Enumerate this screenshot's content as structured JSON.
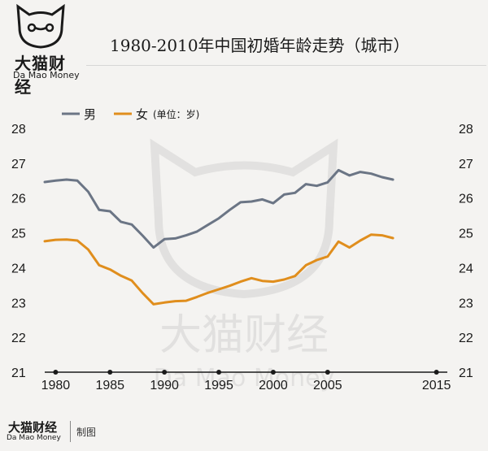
{
  "brand": {
    "name_cn": "大猫财经",
    "name_en": "Da Mao Money"
  },
  "title": "1980-2010年中国初婚年龄走势（城市）",
  "footer": {
    "brand_cn": "大猫财经",
    "brand_en": "Da Mao Money",
    "credit": "制图"
  },
  "watermark": {
    "name_cn": "大猫财经",
    "name_en": "Da Mao Money"
  },
  "colors": {
    "male": "#6b7585",
    "female": "#e08e1d",
    "axis": "#1a1a1a"
  },
  "chart_data": {
    "type": "line",
    "title": "1980-2010年中国初婚年龄走势（城市）",
    "unit": "(单位：岁)",
    "xlabel": "",
    "ylabel": "",
    "xlim": [
      1979,
      2016
    ],
    "ylim": [
      21,
      28
    ],
    "x_ticks": [
      "1980",
      "1985",
      "1990",
      "1995",
      "2000",
      "2005",
      "2015"
    ],
    "x_tick_values": [
      1980,
      1985,
      1990,
      1995,
      2000,
      2005,
      2015
    ],
    "y_ticks": [
      "21",
      "22",
      "23",
      "24",
      "25",
      "26",
      "27",
      "28"
    ],
    "y_tick_values": [
      21,
      22,
      23,
      24,
      25,
      26,
      27,
      28
    ],
    "legend_position": "top-left",
    "grid": false,
    "series": [
      {
        "name": "男",
        "color": "#6b7585",
        "x": [
          1979,
          1980,
          1981,
          1982,
          1983,
          1984,
          1985,
          1986,
          1987,
          1988,
          1989,
          1990,
          1991,
          1992,
          1993,
          1994,
          1995,
          1996,
          1997,
          1998,
          1999,
          2000,
          2001,
          2002,
          2003,
          2004,
          2005,
          2006,
          2007,
          2008,
          2009,
          2010,
          2011
        ],
        "values": [
          26.46,
          26.5,
          26.53,
          26.5,
          26.18,
          25.66,
          25.62,
          25.32,
          25.24,
          24.92,
          24.58,
          24.82,
          24.84,
          24.93,
          25.04,
          25.23,
          25.42,
          25.66,
          25.88,
          25.9,
          25.96,
          25.85,
          26.1,
          26.15,
          26.4,
          26.35,
          26.45,
          26.8,
          26.65,
          26.75,
          26.7,
          26.6,
          26.53
        ]
      },
      {
        "name": "女",
        "color": "#e08e1d",
        "x": [
          1979,
          1980,
          1981,
          1982,
          1983,
          1984,
          1985,
          1986,
          1987,
          1988,
          1989,
          1990,
          1991,
          1992,
          1993,
          1994,
          1995,
          1996,
          1997,
          1998,
          1999,
          2000,
          2001,
          2002,
          2003,
          2004,
          2005,
          2006,
          2007,
          2008,
          2009,
          2010,
          2011
        ],
        "values": [
          24.76,
          24.8,
          24.81,
          24.78,
          24.52,
          24.07,
          23.95,
          23.77,
          23.63,
          23.27,
          22.95,
          23.0,
          23.04,
          23.05,
          23.16,
          23.28,
          23.38,
          23.48,
          23.6,
          23.7,
          23.62,
          23.6,
          23.66,
          23.76,
          24.07,
          24.22,
          24.32,
          24.75,
          24.58,
          24.78,
          24.95,
          24.93,
          24.85
        ]
      }
    ]
  }
}
